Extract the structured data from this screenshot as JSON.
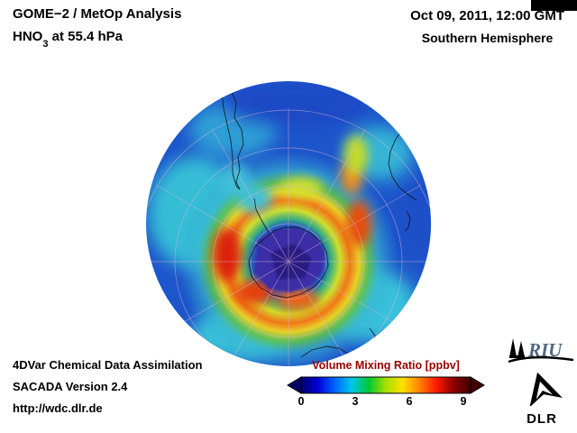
{
  "header": {
    "product": "GOME−2 / MetOp Analysis",
    "species_prefix": "HNO",
    "species_subscript": "3",
    "species_suffix": " at 55.4 hPa",
    "datetime": "Oct 09, 2011, 12:00 GMT",
    "hemisphere": "Southern Hemisphere"
  },
  "colorbar": {
    "title": "Volume Mixing Ratio [ppbv]",
    "title_color": "#990000",
    "ticks": [
      "0",
      "3",
      "6",
      "9"
    ],
    "gradient": [
      "#00006a",
      "#0000d8",
      "#0066ff",
      "#00c8e8",
      "#00c830",
      "#a8e000",
      "#ffe000",
      "#ff8000",
      "#ff1800",
      "#8a0000",
      "#400000"
    ]
  },
  "footer": {
    "line1": "4DVar Chemical Data Assimilation",
    "line2": "SACADA Version 2.4",
    "line3": "http://wdc.dlr.de"
  },
  "logos": {
    "riu": "RIU",
    "dlr": "DLR"
  },
  "map": {
    "region_colors": {
      "background_blue": "#1d55cb",
      "midlatitude_cyan": "#38c2da",
      "ring_yellow": "#cfe02e",
      "ring_red": "#e02414",
      "polar_vortex_dark": "#3b2ea6"
    }
  }
}
